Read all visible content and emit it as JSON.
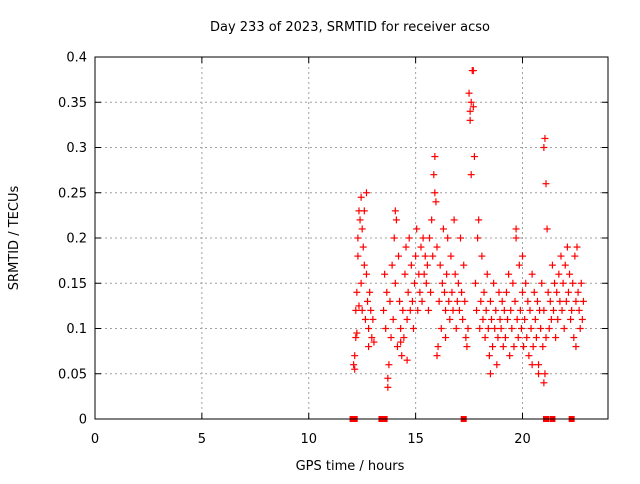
{
  "chart_data": {
    "type": "scatter",
    "title": "Day 233 of 2023, SRMTID for receiver acso",
    "xlabel": "GPS time / hours",
    "ylabel": "SRMTID / TECUs",
    "xlim": [
      0,
      24
    ],
    "ylim": [
      0,
      0.4
    ],
    "grid": true,
    "marker": "+",
    "color": "#ff0000",
    "x_ticks": [
      0,
      5,
      10,
      15,
      20
    ],
    "x_tick_labels": [
      "0",
      "5",
      "10",
      "15",
      "20"
    ],
    "y_ticks": [
      0,
      0.05,
      0.1,
      0.15,
      0.2,
      0.25,
      0.3,
      0.35,
      0.4
    ],
    "y_tick_labels": [
      "0",
      "0.05",
      "0.1",
      "0.15",
      "0.2",
      "0.25",
      "0.3",
      "0.35",
      "0.4"
    ],
    "zero_markers_x": [
      12.05,
      12.15,
      13.4,
      13.5,
      13.55,
      17.25,
      21.1,
      21.4,
      22.3
    ],
    "series": [
      {
        "name": "SRMTID",
        "points": [
          [
            12.1,
            0.06
          ],
          [
            12.15,
            0.07
          ],
          [
            12.2,
            0.09
          ],
          [
            12.2,
            0.12
          ],
          [
            12.25,
            0.14
          ],
          [
            12.3,
            0.18
          ],
          [
            12.3,
            0.2
          ],
          [
            12.35,
            0.23
          ],
          [
            12.4,
            0.22
          ],
          [
            12.45,
            0.245
          ],
          [
            12.45,
            0.15
          ],
          [
            12.5,
            0.21
          ],
          [
            12.5,
            0.12
          ],
          [
            12.55,
            0.19
          ],
          [
            12.6,
            0.17
          ],
          [
            12.6,
            0.23
          ],
          [
            12.65,
            0.11
          ],
          [
            12.7,
            0.16
          ],
          [
            12.7,
            0.25
          ],
          [
            12.75,
            0.13
          ],
          [
            12.8,
            0.1
          ],
          [
            12.8,
            0.08
          ],
          [
            12.85,
            0.14
          ],
          [
            12.9,
            0.12
          ],
          [
            12.95,
            0.09
          ],
          [
            13.0,
            0.11
          ],
          [
            13.05,
            0.085
          ],
          [
            12.35,
            0.125
          ],
          [
            12.15,
            0.055
          ],
          [
            12.25,
            0.095
          ],
          [
            13.5,
            0.12
          ],
          [
            13.55,
            0.16
          ],
          [
            13.6,
            0.1
          ],
          [
            13.65,
            0.14
          ],
          [
            13.7,
            0.045
          ],
          [
            13.75,
            0.06
          ],
          [
            13.8,
            0.13
          ],
          [
            13.85,
            0.09
          ],
          [
            13.9,
            0.17
          ],
          [
            13.95,
            0.11
          ],
          [
            14.0,
            0.2
          ],
          [
            14.05,
            0.15
          ],
          [
            14.1,
            0.22
          ],
          [
            14.15,
            0.08
          ],
          [
            14.2,
            0.18
          ],
          [
            14.25,
            0.13
          ],
          [
            14.3,
            0.1
          ],
          [
            14.35,
            0.07
          ],
          [
            14.4,
            0.12
          ],
          [
            14.45,
            0.09
          ],
          [
            14.5,
            0.16
          ],
          [
            14.55,
            0.19
          ],
          [
            14.6,
            0.11
          ],
          [
            14.65,
            0.14
          ],
          [
            14.7,
            0.2
          ],
          [
            14.75,
            0.12
          ],
          [
            14.8,
            0.17
          ],
          [
            14.85,
            0.13
          ],
          [
            14.9,
            0.1
          ],
          [
            14.95,
            0.15
          ],
          [
            13.7,
            0.035
          ],
          [
            14.05,
            0.23
          ],
          [
            14.3,
            0.085
          ],
          [
            14.6,
            0.065
          ],
          [
            15.0,
            0.18
          ],
          [
            15.05,
            0.21
          ],
          [
            15.1,
            0.12
          ],
          [
            15.15,
            0.16
          ],
          [
            15.2,
            0.14
          ],
          [
            15.25,
            0.19
          ],
          [
            15.3,
            0.13
          ],
          [
            15.35,
            0.2
          ],
          [
            15.4,
            0.16
          ],
          [
            15.45,
            0.18
          ],
          [
            15.5,
            0.15
          ],
          [
            15.55,
            0.17
          ],
          [
            15.6,
            0.12
          ],
          [
            15.65,
            0.2
          ],
          [
            15.7,
            0.14
          ],
          [
            15.75,
            0.22
          ],
          [
            15.8,
            0.18
          ],
          [
            15.85,
            0.27
          ],
          [
            15.9,
            0.29
          ],
          [
            15.95,
            0.24
          ],
          [
            16.0,
            0.19
          ],
          [
            16.05,
            0.08
          ],
          [
            16.1,
            0.13
          ],
          [
            16.15,
            0.17
          ],
          [
            16.2,
            0.1
          ],
          [
            16.25,
            0.15
          ],
          [
            16.3,
            0.21
          ],
          [
            16.35,
            0.14
          ],
          [
            16.4,
            0.12
          ],
          [
            16.45,
            0.16
          ],
          [
            16.5,
            0.2
          ],
          [
            16.55,
            0.13
          ],
          [
            16.6,
            0.11
          ],
          [
            16.65,
            0.18
          ],
          [
            16.7,
            0.14
          ],
          [
            16.75,
            0.12
          ],
          [
            16.8,
            0.22
          ],
          [
            16.85,
            0.16
          ],
          [
            16.9,
            0.1
          ],
          [
            16.95,
            0.13
          ],
          [
            15.9,
            0.25
          ],
          [
            16.0,
            0.07
          ],
          [
            16.4,
            0.09
          ],
          [
            17.0,
            0.15
          ],
          [
            17.05,
            0.12
          ],
          [
            17.1,
            0.2
          ],
          [
            17.15,
            0.14
          ],
          [
            17.2,
            0.11
          ],
          [
            17.25,
            0.17
          ],
          [
            17.3,
            0.13
          ],
          [
            17.35,
            0.09
          ],
          [
            17.4,
            0.08
          ],
          [
            17.45,
            0.1
          ],
          [
            17.5,
            0.36
          ],
          [
            17.55,
            0.33
          ],
          [
            17.6,
            0.35
          ],
          [
            17.65,
            0.385
          ],
          [
            17.7,
            0.345
          ],
          [
            17.75,
            0.29
          ],
          [
            17.8,
            0.15
          ],
          [
            17.85,
            0.12
          ],
          [
            17.9,
            0.2
          ],
          [
            17.95,
            0.22
          ],
          [
            18.0,
            0.1
          ],
          [
            18.05,
            0.13
          ],
          [
            18.1,
            0.18
          ],
          [
            18.15,
            0.11
          ],
          [
            18.2,
            0.14
          ],
          [
            18.25,
            0.09
          ],
          [
            18.3,
            0.12
          ],
          [
            18.35,
            0.16
          ],
          [
            18.4,
            0.1
          ],
          [
            18.45,
            0.07
          ],
          [
            18.5,
            0.13
          ],
          [
            18.55,
            0.11
          ],
          [
            18.6,
            0.08
          ],
          [
            18.65,
            0.15
          ],
          [
            18.7,
            0.1
          ],
          [
            18.75,
            0.12
          ],
          [
            18.8,
            0.06
          ],
          [
            18.85,
            0.09
          ],
          [
            18.9,
            0.14
          ],
          [
            18.95,
            0.11
          ],
          [
            17.6,
            0.27
          ],
          [
            17.55,
            0.34
          ],
          [
            17.7,
            0.385
          ],
          [
            18.5,
            0.05
          ],
          [
            19.0,
            0.1
          ],
          [
            19.05,
            0.13
          ],
          [
            19.1,
            0.08
          ],
          [
            19.15,
            0.12
          ],
          [
            19.2,
            0.09
          ],
          [
            19.25,
            0.14
          ],
          [
            19.3,
            0.11
          ],
          [
            19.35,
            0.16
          ],
          [
            19.4,
            0.07
          ],
          [
            19.45,
            0.12
          ],
          [
            19.5,
            0.1
          ],
          [
            19.55,
            0.15
          ],
          [
            19.6,
            0.08
          ],
          [
            19.65,
            0.13
          ],
          [
            19.7,
            0.2
          ],
          [
            19.75,
            0.11
          ],
          [
            19.8,
            0.09
          ],
          [
            19.85,
            0.17
          ],
          [
            19.9,
            0.12
          ],
          [
            19.95,
            0.1
          ],
          [
            20.0,
            0.14
          ],
          [
            20.05,
            0.08
          ],
          [
            20.1,
            0.11
          ],
          [
            20.15,
            0.15
          ],
          [
            20.2,
            0.09
          ],
          [
            20.25,
            0.13
          ],
          [
            20.3,
            0.07
          ],
          [
            20.35,
            0.12
          ],
          [
            20.4,
            0.1
          ],
          [
            20.45,
            0.16
          ],
          [
            20.5,
            0.08
          ],
          [
            20.55,
            0.14
          ],
          [
            20.6,
            0.11
          ],
          [
            20.65,
            0.09
          ],
          [
            20.7,
            0.13
          ],
          [
            20.75,
            0.06
          ],
          [
            20.8,
            0.12
          ],
          [
            20.85,
            0.1
          ],
          [
            20.9,
            0.15
          ],
          [
            20.95,
            0.08
          ],
          [
            19.7,
            0.21
          ],
          [
            20.0,
            0.18
          ],
          [
            20.45,
            0.06
          ],
          [
            20.75,
            0.05
          ],
          [
            21.0,
            0.3
          ],
          [
            21.05,
            0.31
          ],
          [
            21.1,
            0.26
          ],
          [
            21.15,
            0.21
          ],
          [
            21.0,
            0.12
          ],
          [
            21.1,
            0.09
          ],
          [
            21.2,
            0.14
          ],
          [
            21.25,
            0.1
          ],
          [
            21.3,
            0.13
          ],
          [
            21.35,
            0.11
          ],
          [
            21.4,
            0.17
          ],
          [
            21.45,
            0.12
          ],
          [
            21.5,
            0.15
          ],
          [
            21.55,
            0.09
          ],
          [
            21.6,
            0.14
          ],
          [
            21.65,
            0.11
          ],
          [
            21.7,
            0.16
          ],
          [
            21.75,
            0.13
          ],
          [
            21.8,
            0.18
          ],
          [
            21.85,
            0.12
          ],
          [
            21.9,
            0.15
          ],
          [
            21.95,
            0.1
          ],
          [
            22.0,
            0.17
          ],
          [
            22.05,
            0.13
          ],
          [
            22.1,
            0.19
          ],
          [
            22.15,
            0.14
          ],
          [
            22.2,
            0.16
          ],
          [
            22.25,
            0.11
          ],
          [
            22.3,
            0.12
          ],
          [
            22.35,
            0.15
          ],
          [
            22.4,
            0.09
          ],
          [
            22.45,
            0.18
          ],
          [
            22.5,
            0.13
          ],
          [
            22.55,
            0.19
          ],
          [
            22.6,
            0.14
          ],
          [
            22.65,
            0.12
          ],
          [
            22.7,
            0.1
          ],
          [
            22.75,
            0.15
          ],
          [
            22.8,
            0.11
          ],
          [
            22.85,
            0.13
          ],
          [
            21.05,
            0.05
          ],
          [
            21.0,
            0.04
          ],
          [
            22.5,
            0.08
          ]
        ]
      }
    ]
  }
}
